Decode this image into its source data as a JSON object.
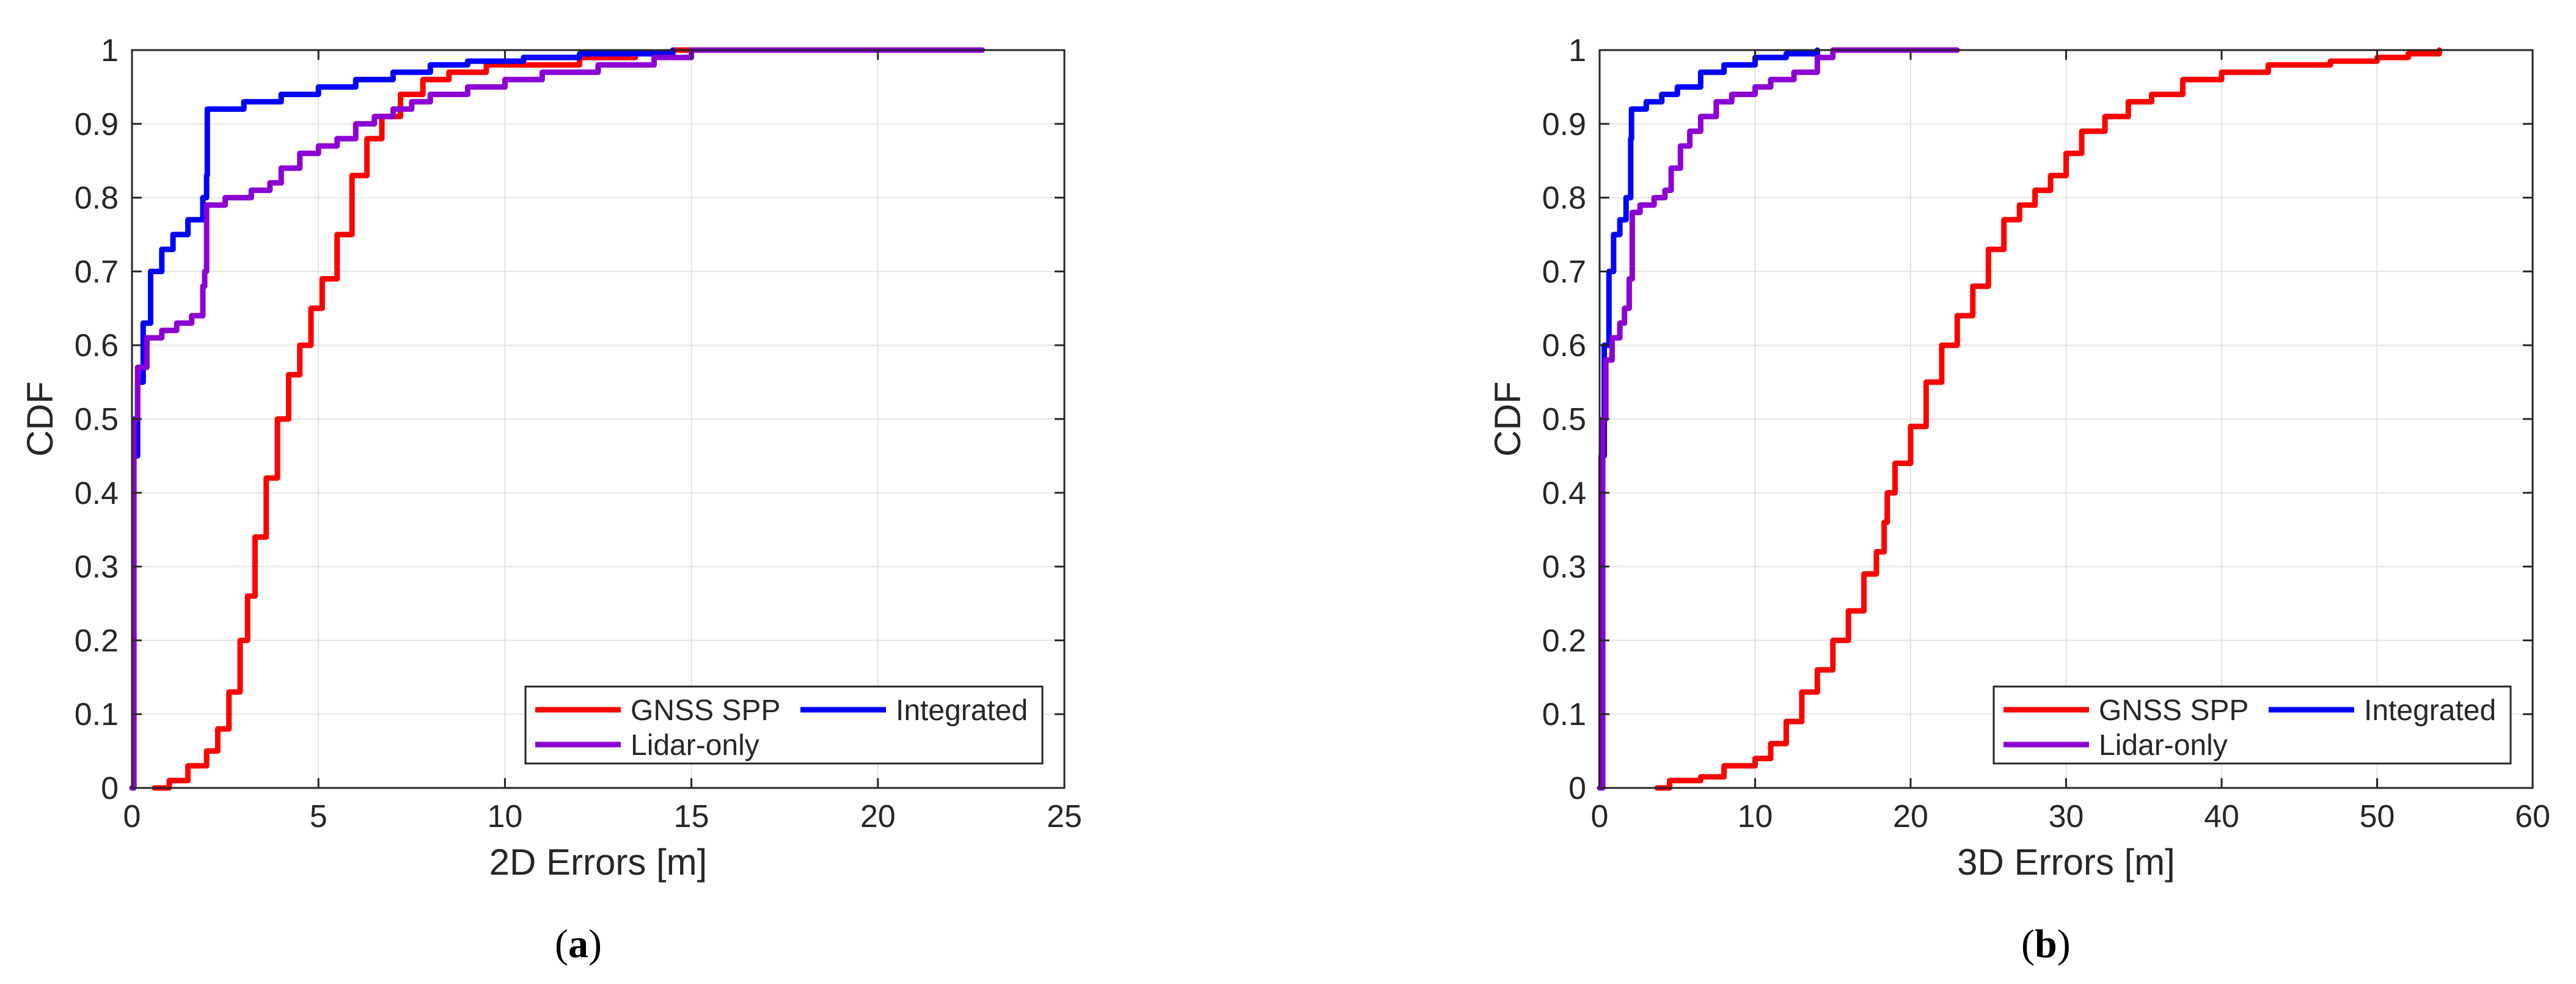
{
  "figure": {
    "panels": [
      {
        "caption_open": "(",
        "caption_letter": "a",
        "caption_close": ")"
      },
      {
        "caption_open": "(",
        "caption_letter": "b",
        "caption_close": ")"
      }
    ]
  },
  "chart_data": [
    {
      "type": "line",
      "title": "",
      "xlabel": "2D Errors [m]",
      "ylabel": "CDF",
      "xlim": [
        0,
        25
      ],
      "ylim": [
        0,
        1
      ],
      "xticks": [
        "0",
        "5",
        "10",
        "15",
        "20",
        "25"
      ],
      "yticks": [
        "0",
        "0.1",
        "0.2",
        "0.3",
        "0.4",
        "0.5",
        "0.6",
        "0.7",
        "0.8",
        "0.9",
        "1"
      ],
      "grid": true,
      "legend_position": "bottom-right",
      "series": [
        {
          "name": "GNSS SPP",
          "color": "#ff0000",
          "points": [
            [
              0.6,
              0
            ],
            [
              1.0,
              0.01
            ],
            [
              1.5,
              0.03
            ],
            [
              2.0,
              0.05
            ],
            [
              2.3,
              0.08
            ],
            [
              2.6,
              0.13
            ],
            [
              2.9,
              0.2
            ],
            [
              3.1,
              0.26
            ],
            [
              3.3,
              0.34
            ],
            [
              3.6,
              0.42
            ],
            [
              3.9,
              0.5
            ],
            [
              4.2,
              0.56
            ],
            [
              4.5,
              0.6
            ],
            [
              4.8,
              0.65
            ],
            [
              5.1,
              0.69
            ],
            [
              5.5,
              0.75
            ],
            [
              5.9,
              0.83
            ],
            [
              6.3,
              0.88
            ],
            [
              6.7,
              0.91
            ],
            [
              7.2,
              0.94
            ],
            [
              7.8,
              0.96
            ],
            [
              8.5,
              0.97
            ],
            [
              9.5,
              0.98
            ],
            [
              10.5,
              0.98
            ],
            [
              12.0,
              0.99
            ],
            [
              13.5,
              0.995
            ],
            [
              14.5,
              1.0
            ],
            [
              22.8,
              1.0
            ]
          ]
        },
        {
          "name": "Integrated",
          "color": "#0000ff",
          "points": [
            [
              0,
              0
            ],
            [
              0.05,
              0.45
            ],
            [
              0.15,
              0.55
            ],
            [
              0.3,
              0.63
            ],
            [
              0.5,
              0.7
            ],
            [
              0.8,
              0.73
            ],
            [
              1.1,
              0.75
            ],
            [
              1.5,
              0.77
            ],
            [
              1.9,
              0.8
            ],
            [
              2.0,
              0.83
            ],
            [
              2.02,
              0.92
            ],
            [
              2.5,
              0.92
            ],
            [
              3.0,
              0.93
            ],
            [
              4.0,
              0.94
            ],
            [
              5.0,
              0.95
            ],
            [
              6.0,
              0.96
            ],
            [
              7.0,
              0.97
            ],
            [
              8.0,
              0.98
            ],
            [
              9.0,
              0.985
            ],
            [
              10.5,
              0.99
            ],
            [
              12.0,
              0.995
            ],
            [
              14.5,
              1.0
            ]
          ]
        },
        {
          "name": "Lidar-only",
          "color": "#8c00d4",
          "points": [
            [
              0,
              0
            ],
            [
              0.05,
              0.5
            ],
            [
              0.15,
              0.57
            ],
            [
              0.4,
              0.61
            ],
            [
              0.8,
              0.62
            ],
            [
              1.2,
              0.63
            ],
            [
              1.6,
              0.64
            ],
            [
              1.9,
              0.68
            ],
            [
              1.95,
              0.7
            ],
            [
              2.0,
              0.79
            ],
            [
              2.5,
              0.8
            ],
            [
              3.2,
              0.81
            ],
            [
              3.7,
              0.82
            ],
            [
              4.0,
              0.84
            ],
            [
              4.5,
              0.86
            ],
            [
              5.0,
              0.87
            ],
            [
              5.5,
              0.88
            ],
            [
              6.0,
              0.9
            ],
            [
              6.5,
              0.91
            ],
            [
              7.0,
              0.92
            ],
            [
              7.5,
              0.93
            ],
            [
              8.0,
              0.94
            ],
            [
              9.0,
              0.95
            ],
            [
              10.0,
              0.96
            ],
            [
              11.0,
              0.97
            ],
            [
              12.5,
              0.98
            ],
            [
              14.0,
              0.99
            ],
            [
              15.0,
              1.0
            ],
            [
              22.8,
              1.0
            ]
          ]
        }
      ]
    },
    {
      "type": "line",
      "title": "",
      "xlabel": "3D Errors [m]",
      "ylabel": "CDF",
      "xlim": [
        0,
        60
      ],
      "ylim": [
        0,
        1
      ],
      "xticks": [
        "0",
        "10",
        "20",
        "30",
        "40",
        "50",
        "60"
      ],
      "yticks": [
        "0",
        "0.1",
        "0.2",
        "0.3",
        "0.4",
        "0.5",
        "0.6",
        "0.7",
        "0.8",
        "0.9",
        "1"
      ],
      "grid": true,
      "legend_position": "bottom-right",
      "series": [
        {
          "name": "GNSS SPP",
          "color": "#ff0000",
          "points": [
            [
              3.7,
              0
            ],
            [
              4.5,
              0.01
            ],
            [
              6.5,
              0.015
            ],
            [
              8.0,
              0.03
            ],
            [
              10.0,
              0.04
            ],
            [
              11.0,
              0.06
            ],
            [
              12.0,
              0.09
            ],
            [
              13.0,
              0.13
            ],
            [
              14.0,
              0.16
            ],
            [
              15.0,
              0.2
            ],
            [
              16.0,
              0.24
            ],
            [
              17.0,
              0.29
            ],
            [
              17.8,
              0.32
            ],
            [
              18.3,
              0.36
            ],
            [
              18.5,
              0.4
            ],
            [
              19.0,
              0.44
            ],
            [
              20.0,
              0.49
            ],
            [
              21.0,
              0.55
            ],
            [
              22.0,
              0.6
            ],
            [
              23.0,
              0.64
            ],
            [
              24.0,
              0.68
            ],
            [
              25.0,
              0.73
            ],
            [
              26.0,
              0.77
            ],
            [
              27.0,
              0.79
            ],
            [
              28.0,
              0.81
            ],
            [
              29.0,
              0.83
            ],
            [
              30.0,
              0.86
            ],
            [
              31.0,
              0.89
            ],
            [
              32.5,
              0.91
            ],
            [
              34.0,
              0.93
            ],
            [
              35.5,
              0.94
            ],
            [
              37.5,
              0.96
            ],
            [
              40.0,
              0.97
            ],
            [
              43.0,
              0.98
            ],
            [
              47.0,
              0.985
            ],
            [
              50.0,
              0.99
            ],
            [
              52.0,
              0.995
            ],
            [
              54.0,
              1.0
            ]
          ]
        },
        {
          "name": "Integrated",
          "color": "#0000ff",
          "points": [
            [
              0,
              0
            ],
            [
              0.1,
              0.45
            ],
            [
              0.3,
              0.6
            ],
            [
              0.6,
              0.7
            ],
            [
              0.9,
              0.75
            ],
            [
              1.3,
              0.77
            ],
            [
              1.7,
              0.8
            ],
            [
              2.0,
              0.88
            ],
            [
              2.05,
              0.92
            ],
            [
              3.0,
              0.93
            ],
            [
              4.0,
              0.94
            ],
            [
              5.0,
              0.95
            ],
            [
              6.5,
              0.97
            ],
            [
              8.0,
              0.98
            ],
            [
              10.0,
              0.99
            ],
            [
              12.0,
              0.995
            ],
            [
              14.0,
              1.0
            ]
          ]
        },
        {
          "name": "Lidar-only",
          "color": "#8c00d4",
          "points": [
            [
              0,
              0
            ],
            [
              0.2,
              0.5
            ],
            [
              0.4,
              0.58
            ],
            [
              0.8,
              0.61
            ],
            [
              1.3,
              0.63
            ],
            [
              1.6,
              0.65
            ],
            [
              1.9,
              0.69
            ],
            [
              2.1,
              0.78
            ],
            [
              2.6,
              0.79
            ],
            [
              3.5,
              0.8
            ],
            [
              4.2,
              0.81
            ],
            [
              4.6,
              0.84
            ],
            [
              5.2,
              0.87
            ],
            [
              5.8,
              0.89
            ],
            [
              6.5,
              0.91
            ],
            [
              7.5,
              0.93
            ],
            [
              8.5,
              0.94
            ],
            [
              10.0,
              0.95
            ],
            [
              11.0,
              0.96
            ],
            [
              12.5,
              0.97
            ],
            [
              14.0,
              0.99
            ],
            [
              15.0,
              1.0
            ],
            [
              23.0,
              1.0
            ]
          ]
        }
      ]
    }
  ]
}
